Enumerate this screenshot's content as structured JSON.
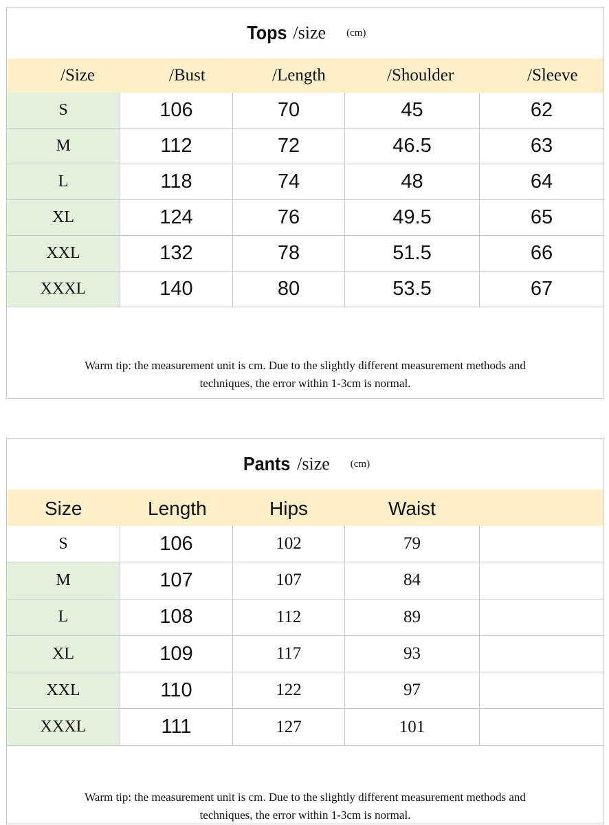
{
  "colors": {
    "header_bg": "#fdf0c8",
    "size_col_bg": "#e3f0dc"
  },
  "tops": {
    "title": "Tops",
    "title_suffix": "/size",
    "unit": "(cm)",
    "headers": [
      "/Size",
      "/Bust",
      "/Length",
      "/Shoulder",
      "/Sleeve"
    ],
    "rows": [
      [
        "S",
        "106",
        "70",
        "45",
        "62"
      ],
      [
        "M",
        "112",
        "72",
        "46.5",
        "63"
      ],
      [
        "L",
        "118",
        "74",
        "48",
        "64"
      ],
      [
        "XL",
        "124",
        "76",
        "49.5",
        "65"
      ],
      [
        "XXL",
        "132",
        "78",
        "51.5",
        "66"
      ],
      [
        "XXXL",
        "140",
        "80",
        "53.5",
        "67"
      ]
    ],
    "tip_line1": "Warm tip: the measurement unit is cm. Due to the slightly different measurement methods and",
    "tip_line2": "techniques, the error within 1-3cm is normal."
  },
  "pants": {
    "title": "Pants",
    "title_suffix": "/size",
    "unit": "(cm)",
    "headers": [
      "Size",
      "Length",
      "Hips",
      "Waist"
    ],
    "rows": [
      [
        "S",
        "106",
        "102",
        "79",
        ""
      ],
      [
        "M",
        "107",
        "107",
        "84",
        ""
      ],
      [
        "L",
        "108",
        "112",
        "89",
        ""
      ],
      [
        "XL",
        "109",
        "117",
        "93",
        ""
      ],
      [
        "XXL",
        "110",
        "122",
        "97",
        ""
      ],
      [
        "XXXL",
        "111",
        "127",
        "101",
        ""
      ]
    ],
    "tip_line1": "Warm tip: the measurement unit is cm. Due to the slightly different measurement methods and",
    "tip_line2": "techniques, the error within 1-3cm is normal."
  }
}
